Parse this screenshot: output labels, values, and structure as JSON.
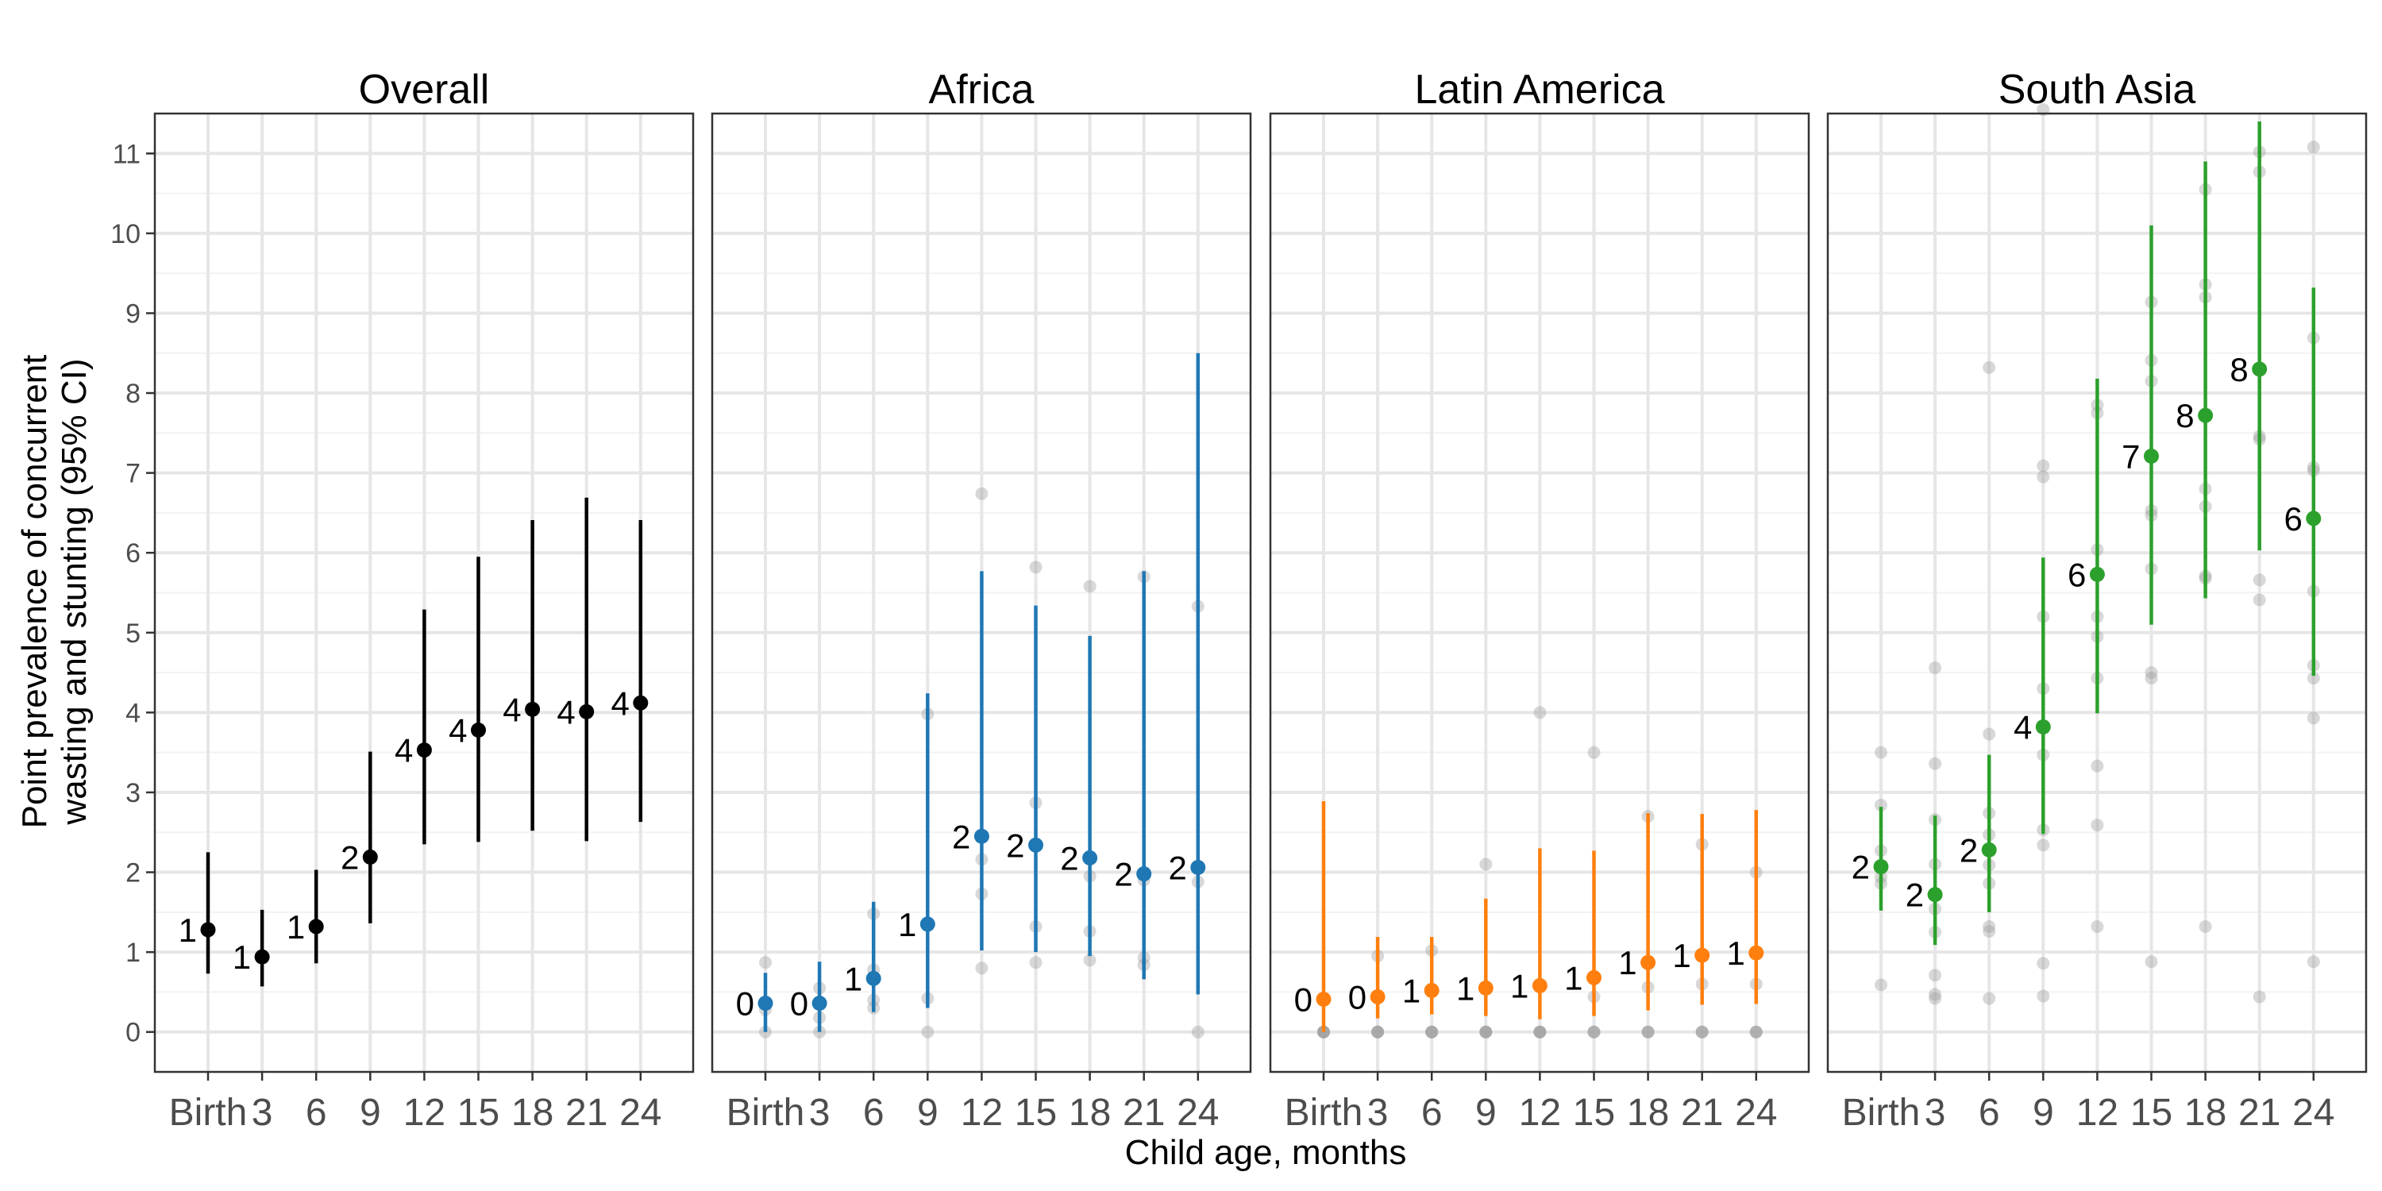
{
  "chart_data": {
    "type": "scatter",
    "xlabel": "Child age, months",
    "ylabel_lines": [
      "Point prevalence of concurrent",
      "wasting and stunting (95% CI)"
    ],
    "categories": [
      "Birth",
      "3",
      "6",
      "9",
      "12",
      "15",
      "18",
      "21",
      "24"
    ],
    "yticks": [
      0,
      1,
      2,
      3,
      4,
      5,
      6,
      7,
      8,
      9,
      10,
      11
    ],
    "ylim": [
      -0.5,
      11.5
    ],
    "grid": true,
    "panels": [
      {
        "title": "Overall",
        "color": "#000000",
        "estimates": [
          1.28,
          0.94,
          1.32,
          2.19,
          3.53,
          3.78,
          4.04,
          4.01,
          4.12
        ],
        "ci_lower": [
          0.73,
          0.57,
          0.86,
          1.36,
          2.35,
          2.38,
          2.52,
          2.39,
          2.63
        ],
        "ci_upper": [
          2.25,
          1.53,
          2.03,
          3.51,
          5.29,
          5.95,
          6.41,
          6.69,
          6.41
        ],
        "labels": [
          "1",
          "1",
          "1",
          "2",
          "4",
          "4",
          "4",
          "4",
          "4"
        ],
        "cohort_points": []
      },
      {
        "title": "Africa",
        "color": "#1F77B4",
        "estimates": [
          0.36,
          0.36,
          0.67,
          1.35,
          2.45,
          2.34,
          2.18,
          1.98,
          2.06
        ],
        "ci_lower": [
          0.0,
          0.0,
          0.25,
          0.3,
          1.02,
          1.0,
          0.95,
          0.66,
          0.47
        ],
        "ci_upper": [
          0.74,
          0.88,
          1.63,
          4.24,
          5.77,
          5.34,
          4.96,
          5.77,
          8.5
        ],
        "labels": [
          "0",
          "0",
          "1",
          "1",
          "2",
          "2",
          "2",
          "2",
          "2"
        ],
        "cohort_points": [
          [
            0,
            0.87
          ],
          [
            0,
            0.28
          ],
          [
            0,
            0.0
          ],
          [
            1,
            0.55
          ],
          [
            1,
            0.18
          ],
          [
            1,
            0.0
          ],
          [
            2,
            1.48
          ],
          [
            2,
            0.78
          ],
          [
            2,
            0.4
          ],
          [
            2,
            0.3
          ],
          [
            3,
            3.98
          ],
          [
            3,
            0.42
          ],
          [
            3,
            0.0
          ],
          [
            4,
            6.74
          ],
          [
            4,
            2.16
          ],
          [
            4,
            1.73
          ],
          [
            4,
            0.8
          ],
          [
            5,
            5.82
          ],
          [
            5,
            2.87
          ],
          [
            5,
            1.32
          ],
          [
            5,
            0.87
          ],
          [
            6,
            5.58
          ],
          [
            6,
            1.95
          ],
          [
            6,
            1.26
          ],
          [
            6,
            0.9
          ],
          [
            7,
            5.7
          ],
          [
            7,
            1.9
          ],
          [
            7,
            0.93
          ],
          [
            7,
            0.84
          ],
          [
            8,
            5.33
          ],
          [
            8,
            1.88
          ],
          [
            8,
            0.0
          ]
        ]
      },
      {
        "title": "Latin America",
        "color": "#FF7F0E",
        "estimates": [
          0.41,
          0.44,
          0.52,
          0.55,
          0.58,
          0.68,
          0.87,
          0.96,
          0.99
        ],
        "ci_lower": [
          0.0,
          0.17,
          0.22,
          0.2,
          0.16,
          0.2,
          0.27,
          0.34,
          0.35
        ],
        "ci_upper": [
          2.89,
          1.19,
          1.19,
          1.67,
          2.3,
          2.27,
          2.74,
          2.73,
          2.78
        ],
        "labels": [
          "0",
          "0",
          "1",
          "1",
          "1",
          "1",
          "1",
          "1",
          "1"
        ],
        "cohort_points": [
          [
            0,
            0.0
          ],
          [
            0,
            0.0
          ],
          [
            0,
            0.0
          ],
          [
            0,
            0.0
          ],
          [
            0,
            0.0
          ],
          [
            1,
            0.95
          ],
          [
            1,
            0.0
          ],
          [
            1,
            0.0
          ],
          [
            1,
            0.0
          ],
          [
            1,
            0.0
          ],
          [
            2,
            1.02
          ],
          [
            2,
            0.0
          ],
          [
            2,
            0.0
          ],
          [
            2,
            0.0
          ],
          [
            2,
            0.0
          ],
          [
            3,
            2.1
          ],
          [
            3,
            0.0
          ],
          [
            3,
            0.0
          ],
          [
            3,
            0.0
          ],
          [
            3,
            0.0
          ],
          [
            4,
            4.0
          ],
          [
            4,
            0.0
          ],
          [
            4,
            0.0
          ],
          [
            4,
            0.0
          ],
          [
            4,
            0.0
          ],
          [
            5,
            3.5
          ],
          [
            5,
            0.44
          ],
          [
            5,
            0.0
          ],
          [
            5,
            0.0
          ],
          [
            5,
            0.0
          ],
          [
            6,
            2.7
          ],
          [
            6,
            0.56
          ],
          [
            6,
            0.0
          ],
          [
            6,
            0.0
          ],
          [
            6,
            0.0
          ],
          [
            7,
            2.35
          ],
          [
            7,
            0.6
          ],
          [
            7,
            0.0
          ],
          [
            7,
            0.0
          ],
          [
            7,
            0.0
          ],
          [
            8,
            2.0
          ],
          [
            8,
            0.6
          ],
          [
            8,
            0.0
          ],
          [
            8,
            0.0
          ],
          [
            8,
            0.0
          ]
        ]
      },
      {
        "title": "South Asia",
        "color": "#2CA02C",
        "estimates": [
          2.07,
          1.72,
          2.28,
          3.82,
          5.73,
          7.21,
          7.72,
          8.3,
          6.43
        ],
        "ci_lower": [
          1.52,
          1.09,
          1.5,
          2.48,
          3.99,
          5.1,
          5.43,
          6.03,
          4.46
        ],
        "ci_upper": [
          2.82,
          2.71,
          3.47,
          5.94,
          8.18,
          10.1,
          10.9,
          11.4,
          9.32
        ],
        "labels": [
          "2",
          "2",
          "2",
          "4",
          "6",
          "7",
          "8",
          "8",
          "6"
        ],
        "cohort_points": [
          [
            0,
            3.5
          ],
          [
            0,
            2.84
          ],
          [
            0,
            2.27
          ],
          [
            0,
            1.94
          ],
          [
            0,
            1.86
          ],
          [
            0,
            0.59
          ],
          [
            1,
            4.56
          ],
          [
            1,
            3.36
          ],
          [
            1,
            2.66
          ],
          [
            1,
            2.1
          ],
          [
            1,
            1.54
          ],
          [
            1,
            1.25
          ],
          [
            1,
            0.71
          ],
          [
            1,
            0.47
          ],
          [
            1,
            0.42
          ],
          [
            2,
            8.32
          ],
          [
            2,
            3.73
          ],
          [
            2,
            2.74
          ],
          [
            2,
            2.47
          ],
          [
            2,
            2.09
          ],
          [
            2,
            1.86
          ],
          [
            2,
            1.32
          ],
          [
            2,
            1.26
          ],
          [
            2,
            0.42
          ],
          [
            3,
            11.55
          ],
          [
            3,
            7.09
          ],
          [
            3,
            6.95
          ],
          [
            3,
            5.2
          ],
          [
            3,
            4.3
          ],
          [
            3,
            3.47
          ],
          [
            3,
            2.53
          ],
          [
            3,
            2.34
          ],
          [
            3,
            0.86
          ],
          [
            3,
            0.45
          ],
          [
            4,
            7.85
          ],
          [
            4,
            7.75
          ],
          [
            4,
            6.04
          ],
          [
            4,
            5.2
          ],
          [
            4,
            4.95
          ],
          [
            4,
            4.43
          ],
          [
            4,
            3.33
          ],
          [
            4,
            2.59
          ],
          [
            4,
            1.32
          ],
          [
            5,
            9.14
          ],
          [
            5,
            8.41
          ],
          [
            5,
            8.15
          ],
          [
            5,
            6.53
          ],
          [
            5,
            6.47
          ],
          [
            5,
            5.8
          ],
          [
            5,
            4.5
          ],
          [
            5,
            4.43
          ],
          [
            5,
            0.88
          ],
          [
            6,
            10.55
          ],
          [
            6,
            9.36
          ],
          [
            6,
            9.2
          ],
          [
            6,
            6.8
          ],
          [
            6,
            6.58
          ],
          [
            6,
            5.71
          ],
          [
            6,
            5.68
          ],
          [
            6,
            1.32
          ],
          [
            7,
            11.02
          ],
          [
            7,
            10.77
          ],
          [
            7,
            7.46
          ],
          [
            7,
            7.42
          ],
          [
            7,
            5.66
          ],
          [
            7,
            5.41
          ],
          [
            7,
            0.44
          ],
          [
            8,
            11.08
          ],
          [
            8,
            8.69
          ],
          [
            8,
            7.07
          ],
          [
            8,
            7.03
          ],
          [
            8,
            5.52
          ],
          [
            8,
            4.59
          ],
          [
            8,
            4.43
          ],
          [
            8,
            3.93
          ],
          [
            8,
            0.88
          ]
        ]
      }
    ]
  }
}
